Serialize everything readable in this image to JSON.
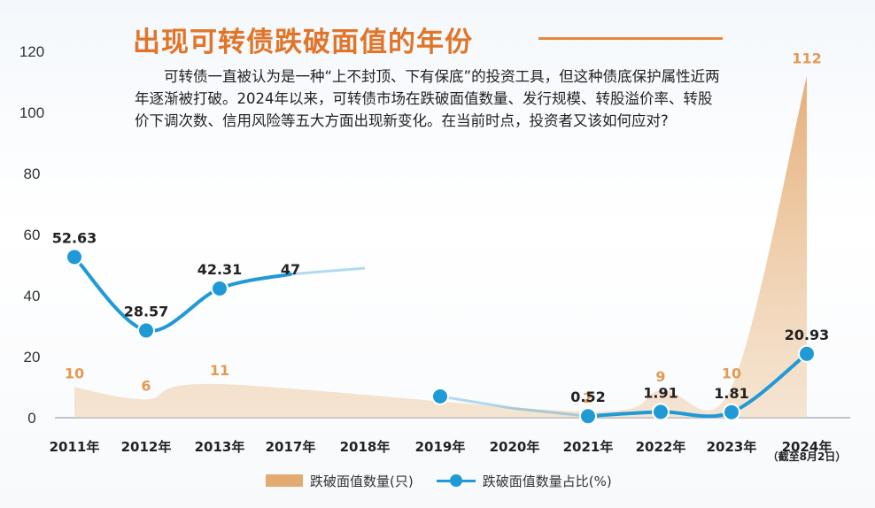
{
  "title": "出现可转债跌破面值的年份",
  "intro": "可转债一直被认为是一种“上不封顶、下有保底”的投资工具，但这种债底保护属性近两年逐渐被打破。2024年以来，可转债市场在跌破面值数量、发行规模、转股溢价率、转股价下调次数、信用风险等五大方面出现新变化。在当前时点，投资者又该如何应对?",
  "legend": {
    "area_label": "跌破面值数量(只)",
    "line_label": "跌破面值数量占比(%)"
  },
  "colors": {
    "title": "#e0752a",
    "area": "#e3ab72",
    "area_label": "#e39a52",
    "line": "#1f9ad6",
    "axis_text": "#333333"
  },
  "chart_data": {
    "type": "area+line",
    "categories": [
      "2011年",
      "2012年",
      "2013年",
      "2017年",
      "2018年",
      "2019年",
      "2020年",
      "2021年",
      "2022年",
      "2023年",
      "2024年"
    ],
    "category_sublabels": [
      "",
      "",
      "",
      "",
      "",
      "",
      "",
      "",
      "",
      "",
      "（截至8月2日）"
    ],
    "ylim": [
      0,
      120
    ],
    "yticks": [
      0,
      20,
      40,
      60,
      80,
      100,
      120
    ],
    "series": [
      {
        "name": "跌破面值数量(只)",
        "kind": "area",
        "values": [
          10,
          6,
          11,
          null,
          null,
          null,
          null,
          2,
          9,
          10,
          112
        ],
        "labels": [
          "10",
          "6",
          "11",
          "",
          "",
          "",
          "",
          "2",
          "9",
          "10",
          "112"
        ]
      },
      {
        "name": "跌破面值数量占比(%)",
        "kind": "line",
        "values": [
          52.63,
          28.57,
          42.31,
          47,
          null,
          null,
          null,
          0.52,
          1.91,
          1.81,
          20.93
        ],
        "labels": [
          "52.63",
          "28.57",
          "42.31",
          "47",
          "",
          "",
          "",
          "0.52",
          "1.91",
          "1.81",
          "20.93"
        ],
        "extra_point": {
          "category": "2019年",
          "value": 7
        }
      }
    ]
  }
}
